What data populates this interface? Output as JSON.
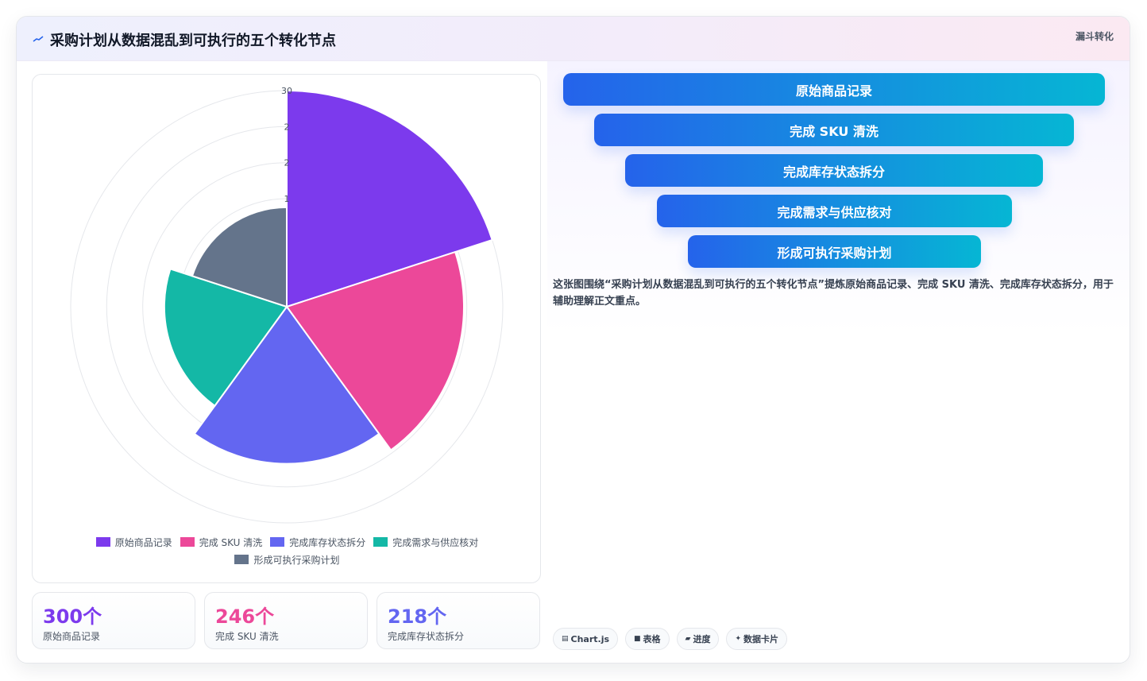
{
  "header": {
    "title": "采购计划从数据混乱到可执行的五个转化节点",
    "tag": "漏斗转化"
  },
  "chart_data": {
    "type": "polarArea",
    "categories": [
      "原始商品记录",
      "完成 SKU 清洗",
      "完成库存状态拆分",
      "完成需求与供应核对",
      "形成可执行采购计划"
    ],
    "values": [
      30,
      24.6,
      21.8,
      17,
      13.8
    ],
    "colors": [
      "#7c3aed",
      "#ec4899",
      "#6366f1",
      "#14b8a6",
      "#64748b"
    ],
    "r_max": 30,
    "tick_labels": [
      "30",
      "2",
      "2",
      "1"
    ],
    "legend_position": "bottom",
    "grid": true
  },
  "kpis": [
    {
      "value": "300个",
      "label": "原始商品记录",
      "color": "#7c3aed"
    },
    {
      "value": "246个",
      "label": "完成 SKU 清洗",
      "color": "#ec4899"
    },
    {
      "value": "218个",
      "label": "完成库存状态拆分",
      "color": "#6366f1"
    }
  ],
  "funnel": [
    "原始商品记录",
    "完成 SKU 清洗",
    "完成库存状态拆分",
    "完成需求与供应核对",
    "形成可执行采购计划"
  ],
  "description": "这张图围绕“采购计划从数据混乱到可执行的五个转化节点”提炼原始商品记录、完成 SKU 清洗、完成库存状态拆分，用于辅助理解正文重点。",
  "chips": [
    {
      "icon": "chart-icon",
      "label": "Chart.js"
    },
    {
      "icon": "table-icon",
      "label": "表格"
    },
    {
      "icon": "progress-icon",
      "label": "进度"
    },
    {
      "icon": "sparkle-icon",
      "label": "数据卡片"
    }
  ]
}
